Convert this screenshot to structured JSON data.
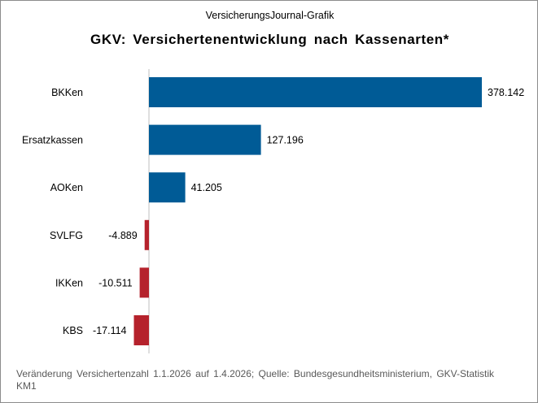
{
  "header": {
    "supertitle": "VersicherungsJournal-Grafik",
    "title": "GKV: Versichertenentwicklung nach Kassenarten*"
  },
  "footnote": "Veränderung Versichertenzahl 1.1.2026 auf 1.4.2026; Quelle: Bundesgesundheitsministerium, GKV-Statistik KM1",
  "colors": {
    "positive": "#005b96",
    "negative": "#b5222c",
    "axis": "#bfbfbf"
  },
  "chart_data": {
    "type": "bar",
    "orientation": "horizontal",
    "categories": [
      "BKKen",
      "Ersatzkassen",
      "AOKen",
      "SVLFG",
      "IKKen",
      "KBS"
    ],
    "values": [
      378142,
      127196,
      41205,
      -4889,
      -10511,
      -17114
    ],
    "value_labels": [
      "378.142",
      "127.196",
      "41.205",
      "-4.889",
      "-10.511",
      "-17.114"
    ],
    "title": "GKV: Versichertenentwicklung nach Kassenarten*",
    "xlabel": "",
    "ylabel": "",
    "xlim": [
      -17114,
      378142
    ],
    "grid": false,
    "legend": "none"
  }
}
